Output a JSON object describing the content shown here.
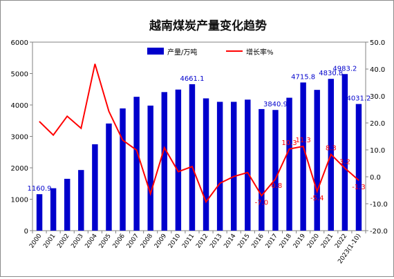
{
  "chart_data": {
    "type": "bar",
    "title": "越南煤炭产量变化趋势",
    "categories": [
      "2000",
      "2001",
      "2002",
      "2003",
      "2004",
      "2005",
      "2006",
      "2007",
      "2008",
      "2009",
      "2010",
      "2011",
      "2012",
      "2013",
      "2014",
      "2015",
      "2016",
      "2017",
      "2018",
      "2019",
      "2020",
      "2021",
      "2022",
      "2023(1-10)"
    ],
    "series": [
      {
        "name": "产量/万吨",
        "kind": "bar",
        "axis": "left",
        "color": "#0000cc",
        "values": [
          1160.9,
          1350,
          1650,
          1930,
          2750,
          3410,
          3890,
          4260,
          3980,
          4410,
          4490,
          4661.1,
          4210,
          4100,
          4100,
          4170,
          3870,
          3840.9,
          4230,
          4715.8,
          4480,
          4830.8,
          4983.2,
          4031.2
        ]
      },
      {
        "name": "增长率%",
        "kind": "line",
        "axis": "right",
        "color": "#ff0000",
        "values": [
          20.5,
          15.5,
          22.5,
          18.0,
          41.9,
          24.3,
          13.6,
          9.9,
          -6.3,
          10.8,
          1.9,
          3.8,
          -9.3,
          -2.4,
          0.1,
          1.6,
          -7.0,
          -0.8,
          10.3,
          11.3,
          -5.4,
          8.3,
          3.2,
          -1.3
        ]
      }
    ],
    "bar_labels": [
      {
        "index": 0,
        "text": "1160.9"
      },
      {
        "index": 11,
        "text": "4661.1"
      },
      {
        "index": 17,
        "text": "3840.9"
      },
      {
        "index": 19,
        "text": "4715.8"
      },
      {
        "index": 21,
        "text": "4830.8"
      },
      {
        "index": 22,
        "text": "4983.2"
      },
      {
        "index": 23,
        "text": "4031.2"
      }
    ],
    "line_labels": [
      {
        "index": 16,
        "text": "-7.0"
      },
      {
        "index": 17,
        "text": "-0.8"
      },
      {
        "index": 18,
        "text": "10.3"
      },
      {
        "index": 19,
        "text": "11.3"
      },
      {
        "index": 20,
        "text": "-5.4"
      },
      {
        "index": 21,
        "text": "8.3"
      },
      {
        "index": 22,
        "text": "3.2"
      },
      {
        "index": 23,
        "text": "-1.3"
      }
    ],
    "left_axis": {
      "min": 0,
      "max": 6000,
      "ticks": [
        "0",
        "1000",
        "2000",
        "3000",
        "4000",
        "5000",
        "6000"
      ]
    },
    "right_axis": {
      "min": -20,
      "max": 50,
      "ticks": [
        "-20.0",
        "-10.0",
        "0.0",
        "10.0",
        "20.0",
        "30.0",
        "40.0",
        "50.0"
      ]
    },
    "legend_position": "top-right",
    "grid": false
  }
}
